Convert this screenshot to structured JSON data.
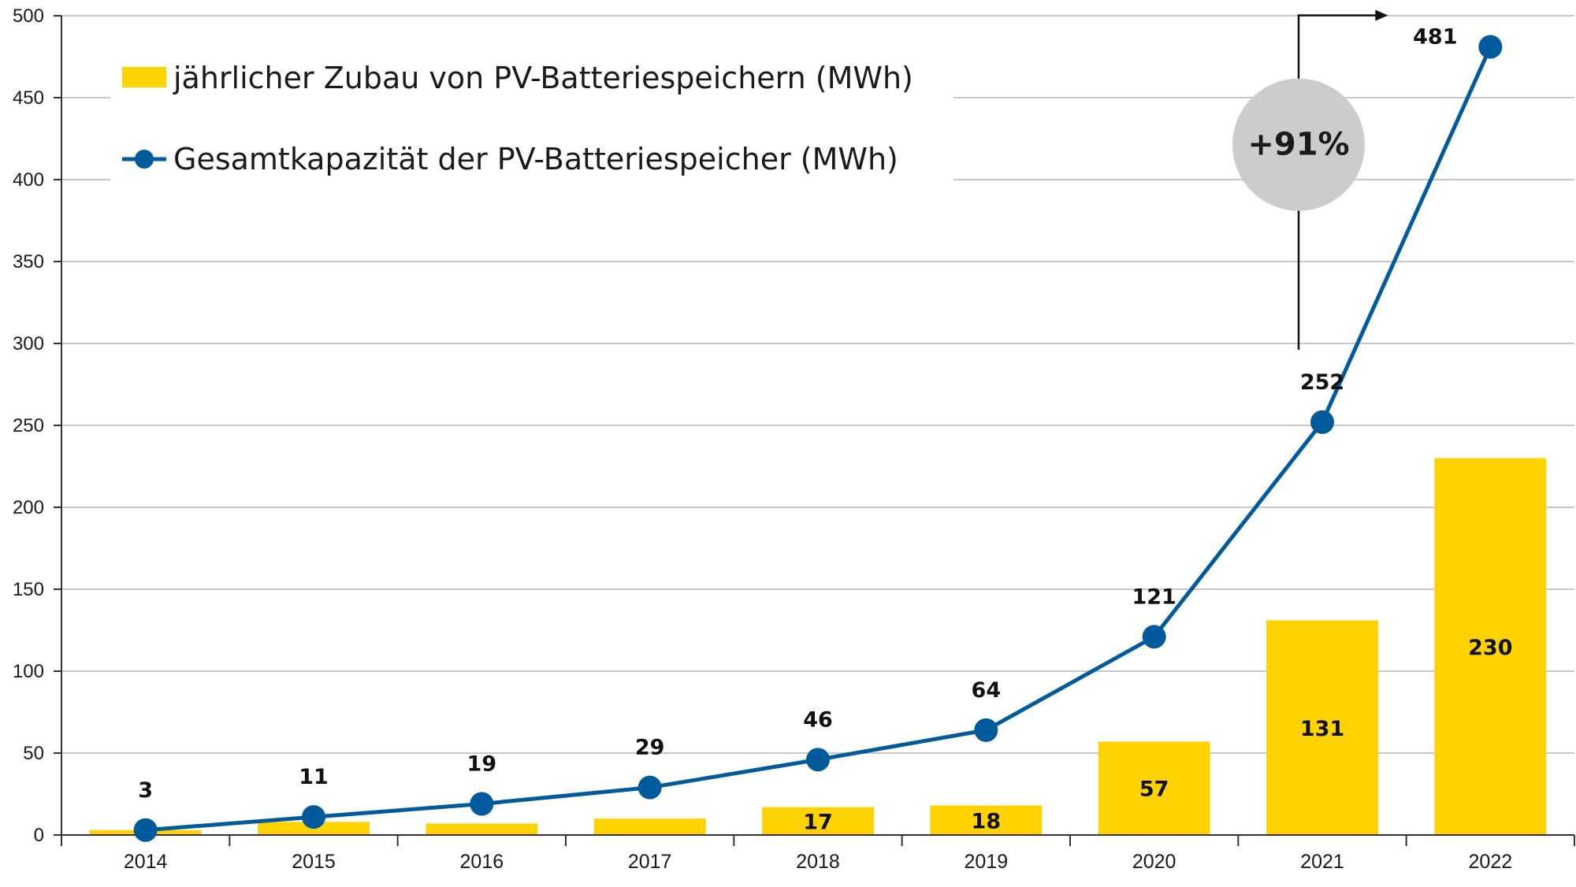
{
  "chart_data": {
    "type": "bar",
    "categories": [
      "2014",
      "2015",
      "2016",
      "2017",
      "2018",
      "2019",
      "2020",
      "2021",
      "2022"
    ],
    "series": [
      {
        "name": "jährlicher Zubau von PV-Batteriespeichern (MWh)",
        "type": "bar",
        "color": "#FFD200",
        "values": [
          3,
          8,
          7,
          10,
          17,
          18,
          57,
          131,
          230
        ],
        "labels": [
          "",
          "",
          "",
          "",
          "17",
          "18",
          "57",
          "131",
          "230"
        ]
      },
      {
        "name": "Gesamtkapazität der PV-Batteriespeicher (MWh)",
        "type": "line",
        "color": "#005A9C",
        "values": [
          3,
          11,
          19,
          29,
          46,
          64,
          121,
          252,
          481
        ],
        "labels": [
          "3",
          "11",
          "19",
          "29",
          "46",
          "64",
          "121",
          "252",
          "481"
        ]
      }
    ],
    "ylim": [
      0,
      500
    ],
    "yticks": [
      "0",
      "50",
      "100",
      "150",
      "200",
      "250",
      "300",
      "350",
      "400",
      "450",
      "500"
    ],
    "grid": true,
    "legend": "top-left",
    "annotation": {
      "text": "+91%",
      "from": "2021",
      "to": "2022",
      "color": "#CCCCCC"
    }
  }
}
